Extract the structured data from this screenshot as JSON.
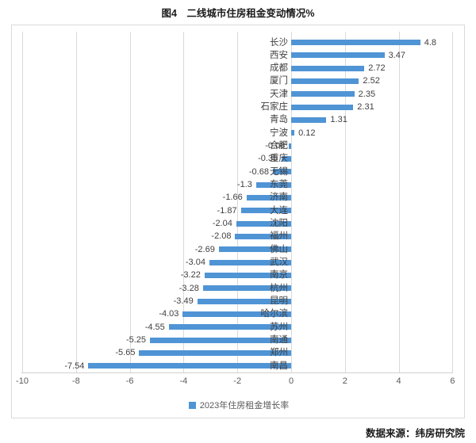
{
  "title": "图4　二线城市住房租金变动情况%",
  "source_note": "数据来源：纬房研究院",
  "chart_data": {
    "type": "bar",
    "orientation": "horizontal",
    "title": "图4　二线城市住房租金变动情况%",
    "legend": [
      "2023年住房租金增长率"
    ],
    "legend_position": "bottom",
    "bar_color": "#4f94d5",
    "grid": "vertical",
    "xlim": [
      -10,
      6
    ],
    "xticks": [
      -10,
      -8,
      -6,
      -4,
      -2,
      0,
      2,
      4,
      6
    ],
    "categories": [
      "长沙",
      "西安",
      "成都",
      "厦门",
      "天津",
      "石家庄",
      "青岛",
      "宁波",
      "合肥",
      "重庆",
      "无锡",
      "东莞",
      "济南",
      "大连",
      "沈阳",
      "福州",
      "佛山",
      "武汉",
      "南京",
      "杭州",
      "昆明",
      "哈尔滨",
      "苏州",
      "南通",
      "郑州",
      "南昌"
    ],
    "values": [
      4.8,
      3.47,
      2.72,
      2.52,
      2.35,
      2.31,
      1.31,
      0.12,
      -0.08,
      -0.35,
      -0.68,
      -1.3,
      -1.66,
      -1.87,
      -2.04,
      -2.08,
      -2.69,
      -3.04,
      -3.22,
      -3.28,
      -3.49,
      -4.03,
      -4.55,
      -5.25,
      -5.65,
      -7.54
    ],
    "value_labels": [
      "4.8",
      "3.47",
      "2.72",
      "2.52",
      "2.35",
      "2.31",
      "1.31",
      "0.12",
      "-0.08",
      "-0.35",
      "-0.68",
      "-1.3",
      "-1.66",
      "-1.87",
      "-2.04",
      "-2.08",
      "-2.69",
      "-3.04",
      "-3.22",
      "-3.28",
      "-3.49",
      "-4.03",
      "-4.55",
      "-5.25",
      "-5.65",
      "-7.54"
    ]
  }
}
